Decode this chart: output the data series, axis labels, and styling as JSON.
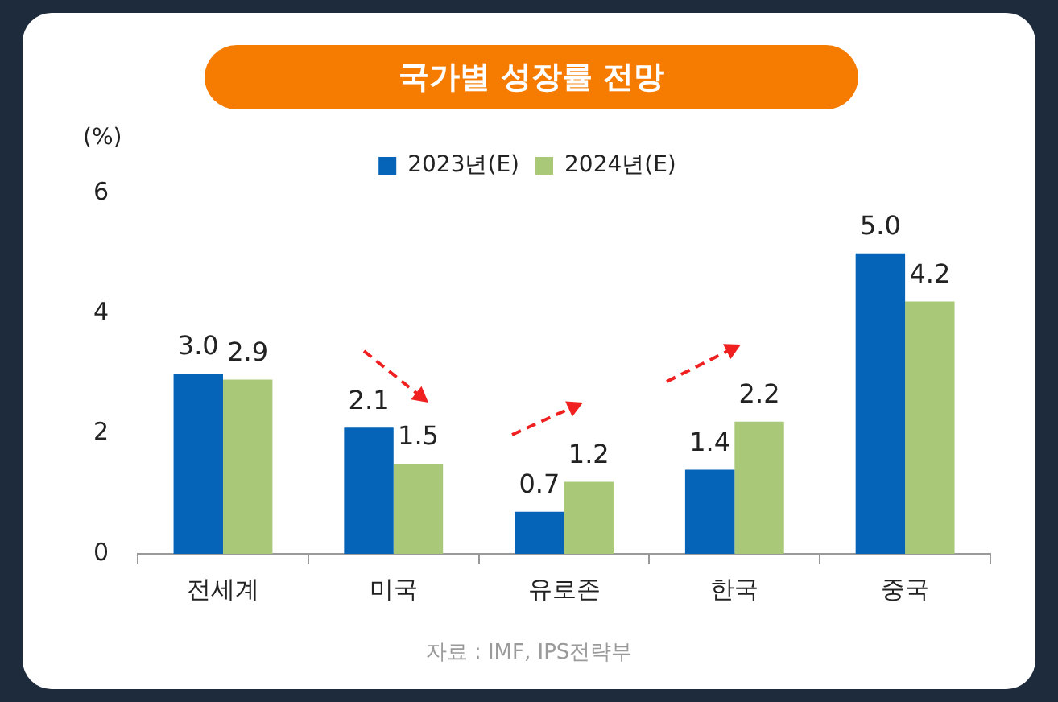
{
  "chart_data": {
    "type": "bar",
    "title": "국가별 성장률 전망",
    "ylabel": "(%)",
    "categories": [
      "전세계",
      "미국",
      "유로존",
      "한국",
      "중국"
    ],
    "series": [
      {
        "name": "2023년(E)",
        "color": "#0563b8",
        "values": [
          3.0,
          2.1,
          0.7,
          1.4,
          5.0
        ],
        "value_labels": [
          "3.0",
          "2.1",
          "0.7",
          "1.4",
          "5.0"
        ]
      },
      {
        "name": "2024년(E)",
        "color": "#a9c978",
        "values": [
          2.9,
          1.5,
          1.2,
          2.2,
          4.2
        ],
        "value_labels": [
          "2.9",
          "1.5",
          "1.2",
          "2.2",
          "4.2"
        ]
      }
    ],
    "ylim": [
      0,
      6
    ],
    "yticks": [
      0,
      2,
      4,
      6
    ],
    "grid": false,
    "legend": "top",
    "annotations": [
      "자료 : IMF, IPS전략부"
    ]
  }
}
